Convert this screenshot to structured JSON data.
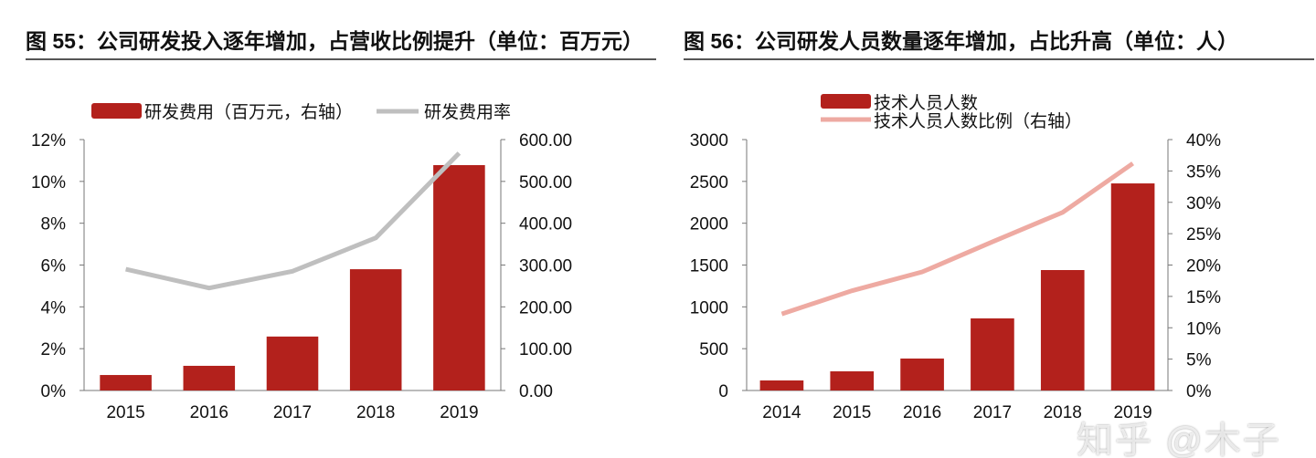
{
  "watermark": "知乎 @木子",
  "chart_data": [
    {
      "type": "bar+line",
      "title": "图 55：公司研发投入逐年增加，占营收比例提升（单位：百万元）",
      "categories": [
        "2015",
        "2016",
        "2017",
        "2018",
        "2019"
      ],
      "series": [
        {
          "name": "研发费用（百万元，右轴）",
          "kind": "bar",
          "axis": "right",
          "color": "#b3211c",
          "values": [
            37,
            59,
            129,
            290,
            539
          ]
        },
        {
          "name": "研发费用率",
          "kind": "line",
          "axis": "left",
          "color": "#bfbfbf",
          "values": [
            5.8,
            4.9,
            5.7,
            7.3,
            11.35
          ]
        }
      ],
      "left_axis": {
        "ylim": [
          0,
          12
        ],
        "ticks": [
          "0%",
          "2%",
          "4%",
          "6%",
          "8%",
          "10%",
          "12%"
        ]
      },
      "right_axis": {
        "ylim": [
          0,
          600
        ],
        "ticks": [
          "0.00",
          "100.00",
          "200.00",
          "300.00",
          "400.00",
          "500.00",
          "600.00"
        ]
      },
      "legend": "top",
      "grid": false
    },
    {
      "type": "bar+line",
      "title": "图 56：公司研发人员数量逐年增加，占比升高（单位：人）",
      "categories": [
        "2014",
        "2015",
        "2016",
        "2017",
        "2018",
        "2019"
      ],
      "series": [
        {
          "name": "技术人员人数",
          "kind": "bar",
          "axis": "left",
          "color": "#b3211c",
          "values": [
            120,
            229,
            382,
            862,
            1440,
            2476
          ]
        },
        {
          "name": "技术人员人数比例（右轴）",
          "kind": "line",
          "axis": "right",
          "color": "#eeaaa2",
          "values": [
            12.2,
            15.9,
            18.9,
            23.7,
            28.4,
            36.2
          ]
        }
      ],
      "left_axis": {
        "ylim": [
          0,
          3000
        ],
        "ticks": [
          "0",
          "500",
          "1000",
          "1500",
          "2000",
          "2500",
          "3000"
        ]
      },
      "right_axis": {
        "ylim": [
          0,
          40
        ],
        "ticks": [
          "0%",
          "5%",
          "10%",
          "15%",
          "20%",
          "25%",
          "30%",
          "35%",
          "40%"
        ]
      },
      "legend": "top",
      "grid": false
    }
  ]
}
